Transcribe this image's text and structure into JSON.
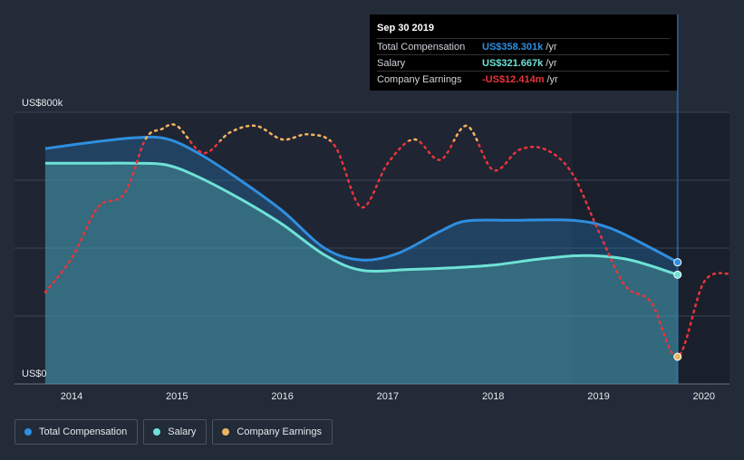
{
  "chart_data": {
    "type": "area",
    "y_axis_labels": {
      "top": "US$800k",
      "bottom": "US$0"
    },
    "ylim": [
      0,
      800
    ],
    "y_unit": "US$k",
    "x_tick_labels": [
      "2014",
      "2015",
      "2016",
      "2017",
      "2018",
      "2019",
      "2020"
    ],
    "xlim": [
      2013.7,
      2020.25
    ],
    "grid": true,
    "forecast_shaded_from": 2018.75,
    "series": [
      {
        "name": "Total Compensation",
        "color": "#2e8fe0",
        "style": "solid-area",
        "x": [
          2013.75,
          2014.2,
          2014.6,
          2014.9,
          2015.2,
          2015.6,
          2016.0,
          2016.4,
          2016.75,
          2017.1,
          2017.5,
          2017.75,
          2018.2,
          2018.75,
          2019.1,
          2019.5,
          2019.75
        ],
        "y": [
          693,
          712,
          725,
          722,
          680,
          600,
          510,
          400,
          365,
          385,
          450,
          480,
          482,
          482,
          460,
          400,
          358.3
        ]
      },
      {
        "name": "Salary",
        "color": "#6ee2d6",
        "style": "solid-area",
        "x": [
          2013.75,
          2014.2,
          2014.6,
          2014.9,
          2015.2,
          2015.6,
          2016.0,
          2016.4,
          2016.75,
          2017.2,
          2017.6,
          2018.0,
          2018.5,
          2018.9,
          2019.3,
          2019.75
        ],
        "y": [
          650,
          650,
          650,
          645,
          610,
          545,
          470,
          380,
          335,
          337,
          342,
          350,
          370,
          378,
          365,
          321.7
        ]
      },
      {
        "name": "Company Earnings",
        "color": "#e8343c",
        "positive_color": "#e8b661",
        "style": "dotted",
        "x": [
          2013.75,
          2014.0,
          2014.25,
          2014.5,
          2014.7,
          2014.85,
          2015.0,
          2015.25,
          2015.5,
          2015.75,
          2016.0,
          2016.25,
          2016.5,
          2016.75,
          2017.0,
          2017.25,
          2017.5,
          2017.75,
          2018.0,
          2018.25,
          2018.5,
          2018.75,
          2019.0,
          2019.25,
          2019.5,
          2019.75,
          2020.0,
          2020.25
        ],
        "y": [
          270,
          370,
          520,
          560,
          720,
          750,
          760,
          680,
          740,
          760,
          720,
          735,
          700,
          520,
          650,
          720,
          660,
          760,
          630,
          690,
          690,
          620,
          450,
          290,
          240,
          80,
          300,
          325
        ],
        "tooltip_value": "-12.414m"
      }
    ],
    "tooltip": {
      "title": "Sep 30 2019",
      "rows": [
        {
          "name": "Total Compensation",
          "value": "US$358.301k",
          "unit": "/yr",
          "color": "#2e8fe0"
        },
        {
          "name": "Salary",
          "value": "US$321.667k",
          "unit": "/yr",
          "color": "#6ee2d6"
        },
        {
          "name": "Company Earnings",
          "value": "-US$12.414m",
          "unit": "/yr",
          "color": "#e8343c"
        }
      ]
    },
    "legend": [
      {
        "name": "Total Compensation",
        "color": "#2e8fe0"
      },
      {
        "name": "Salary",
        "color": "#6ee2d6"
      },
      {
        "name": "Company Earnings",
        "color": "#e8b661"
      }
    ]
  }
}
